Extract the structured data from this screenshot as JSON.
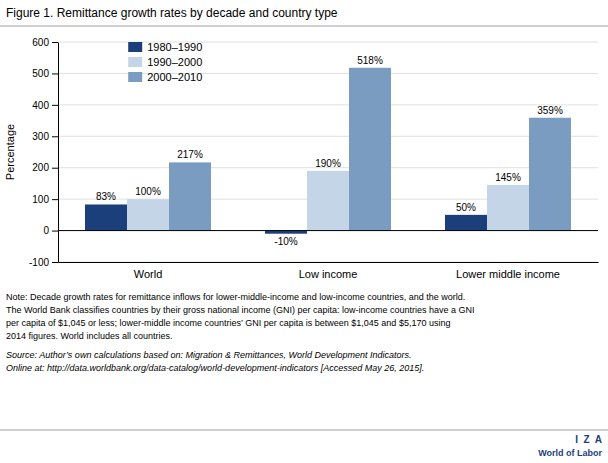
{
  "chart_data": {
    "type": "bar",
    "title": "Figure 1. Remittance growth rates by decade and country type",
    "ylabel": "Percentage",
    "categories": [
      "World",
      "Low income",
      "Lower middle income"
    ],
    "series": [
      {
        "name": "1980–1990",
        "color": "#1b3f7a",
        "values": [
          83,
          -10,
          50
        ],
        "value_labels": [
          "83%",
          "-10%",
          "50%"
        ]
      },
      {
        "name": "1990–2000",
        "color": "#c5d5e8",
        "values": [
          100,
          190,
          145
        ],
        "value_labels": [
          "100%",
          "190%",
          "145%"
        ]
      },
      {
        "name": "2000–2010",
        "color": "#7a9cc0",
        "values": [
          217,
          518,
          359
        ],
        "value_labels": [
          "217%",
          "518%",
          "359%"
        ]
      }
    ],
    "ylim": [
      -100,
      600
    ],
    "yticks": [
      -100,
      0,
      100,
      200,
      300,
      400,
      500,
      600
    ],
    "grid": true,
    "legend": "upper left",
    "data_labels": true,
    "notes": [
      "Note: Decade growth rates for remittance inflows for lower-middle-income and low-income countries, and the world.",
      "The World Bank classifies countries by their gross national income (GNI) per capita: low-income countries have a GNI",
      "per capita of $1,045 or less; lower-middle income countries’ GNI per capita is between $1,045 and $5,170 using",
      "2014 figures. World includes all countries."
    ],
    "source": [
      "Source: Author’s own calculations based on: Migration & Remittances, World Development Indicators.",
      "Online at: http://data.worldbank.org/data-catalog/world-development-indicators [Accessed May 26, 2015]."
    ],
    "annotations": [
      "I  Z  A",
      "World of Labor"
    ]
  }
}
